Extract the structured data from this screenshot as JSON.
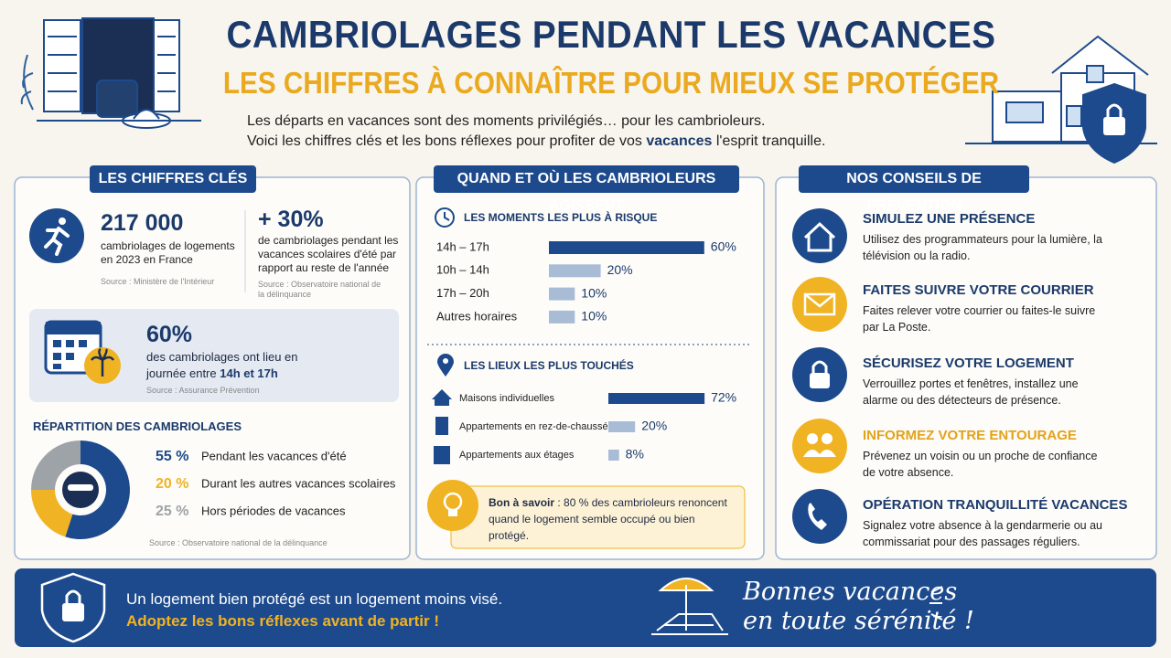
{
  "header": {
    "title": "CAMBRIOLAGES PENDANT LES VACANCES",
    "subtitle": "LES CHIFFRES À CONNAÎTRE POUR MIEUX SE PROTÉGER",
    "intro_1": "Les départs en vacances sont des moments privilégiés… pour les cambrioleurs.",
    "intro_2_start": "Voici les chiffres clés et les bons réflexes pour profiter de vos ",
    "intro_2_bold": "vacances",
    "intro_2_end": " l'esprit tranquille."
  },
  "key_figures": {
    "heading": "LES CHIFFRES CLÉS",
    "stat_1": {
      "value": "217 000",
      "text": "cambriolages de logements en 2023 en France",
      "source": "Source : Ministère de l'Intérieur"
    },
    "stat_2": {
      "value": "+ 30%",
      "text": "de cambriolages pendant les vacances scolaires d'été par rapport au reste de l'année",
      "source": "Source : Observatoire national de la délinquance"
    },
    "stat_3": {
      "value": "60%",
      "text": "des cambriolages ont lieu en journée entre ",
      "text_bold": "14h et 17h",
      "source": "Source : Assurance Prévention"
    },
    "breakdown": {
      "type": "donut",
      "title": "RÉPARTITION DES CAMBRIOLAGES",
      "categories": [
        "Pendant les vacances d'été",
        "Durant les autres vacances scolaires",
        "Hors périodes de vacances"
      ],
      "values": [
        55,
        20,
        25
      ],
      "value_labels": [
        "55 %",
        "20 %",
        "25 %"
      ],
      "colors": [
        "#1d4a8c",
        "#f0b323",
        "#9ea3a8"
      ],
      "source": "Source : Observatoire national de la délinquance"
    }
  },
  "when_where": {
    "heading": "QUAND ET OÙ LES CAMBRIOLEURS AGISSENT",
    "moments": {
      "type": "bar",
      "title": "LES MOMENTS LES PLUS À RISQUE",
      "categories": [
        "14h – 17h",
        "10h – 14h",
        "17h – 20h",
        "Autres horaires"
      ],
      "values": [
        60,
        20,
        10,
        10
      ],
      "value_labels": [
        "60%",
        "20%",
        "10%",
        "10%"
      ],
      "colors": [
        "#1d4a8c",
        "#a9bcd6",
        "#a9bcd6",
        "#a9bcd6"
      ]
    },
    "places": {
      "type": "bar",
      "title": "LES LIEUX LES PLUS TOUCHÉS",
      "categories": [
        "Maisons individuelles",
        "Appartements en rez-de-chaussée",
        "Appartements aux étages"
      ],
      "values": [
        72,
        20,
        8
      ],
      "value_labels": [
        "72%",
        "20%",
        "8%"
      ],
      "colors": [
        "#1d4a8c",
        "#a9bcd6",
        "#a9bcd6"
      ]
    },
    "tip": {
      "bold": "Bon à savoir",
      "text": " : 80 % des cambrioleurs renoncent quand le logement semble occupé ou bien protégé."
    }
  },
  "advice": {
    "heading": "NOS CONSEILS DE PRÉVENTION",
    "items": [
      {
        "title": "SIMULEZ UNE PRÉSENCE",
        "text": "Utilisez des programmateurs pour la lumière, la télévision ou la radio."
      },
      {
        "title": "FAITES SUIVRE VOTRE COURRIER",
        "text": "Faites relever votre courrier ou faites-le suivre par La Poste."
      },
      {
        "title": "SÉCURISEZ VOTRE LOGEMENT",
        "text": "Verrouillez portes et fenêtres, installez une alarme ou des détecteurs de présence."
      },
      {
        "title": "INFORMEZ VOTRE ENTOURAGE",
        "text": "Prévenez un voisin ou un proche de confiance de votre absence."
      },
      {
        "title": "OPÉRATION TRANQUILLITÉ VACANCES",
        "text": "Signalez votre absence à la gendarmerie ou au commissariat pour des passages réguliers."
      }
    ]
  },
  "footer": {
    "line_1": "Un logement bien protégé est un logement moins visé.",
    "line_2": "Adoptez les bons réflexes avant de partir !",
    "wish_1": "Bonnes vacances",
    "wish_2": "en toute sérénité !"
  }
}
